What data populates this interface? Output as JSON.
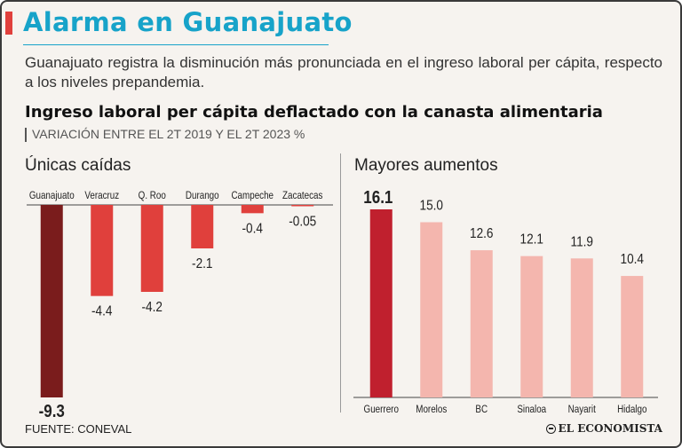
{
  "header": {
    "title": "Alarma en Guanajuato",
    "subtitle": "Guanajuato registra la disminución más pronunciada en el ingreso laboral per cápita, respecto a los niveles prepandemia."
  },
  "chart_heading": {
    "title": "Ingreso laboral per cápita deflactado con la canasta alimentaria",
    "subtitle": "VARIACIÓN ENTRE EL 2T 2019 Y EL 2T 2023 %"
  },
  "footer": {
    "source": "FUENTE: CONEVAL",
    "brand": "EL ECONOMISTA"
  },
  "colors": {
    "title": "#17a3c9",
    "accent": "#e0403c",
    "highlight_negative": "#7a1c1c",
    "negative": "#e0403c",
    "highlight_positive": "#c0202e",
    "positive": "#f4b6ae"
  },
  "chart_data": [
    {
      "type": "bar",
      "title": "Únicas caídas",
      "categories": [
        "Guanajuato",
        "Veracruz",
        "Q. Roo",
        "Durango",
        "Campeche",
        "Zacatecas"
      ],
      "values": [
        -9.3,
        -4.4,
        -4.2,
        -2.1,
        -0.4,
        -0.05
      ],
      "labels": [
        "-9.3",
        "-4.4",
        "-4.2",
        "-2.1",
        "-0.4",
        "-0.05"
      ],
      "ylim": [
        -9.3,
        0
      ],
      "highlight_index": 0
    },
    {
      "type": "bar",
      "title": "Mayores aumentos",
      "categories": [
        "Guerrero",
        "Morelos",
        "BC",
        "Sinaloa",
        "Nayarit",
        "Hidalgo"
      ],
      "values": [
        16.1,
        15.0,
        12.6,
        12.1,
        11.9,
        10.4
      ],
      "labels": [
        "16.1",
        "15.0",
        "12.6",
        "12.1",
        "11.9",
        "10.4"
      ],
      "ylim": [
        0,
        16.1
      ],
      "highlight_index": 0
    }
  ]
}
